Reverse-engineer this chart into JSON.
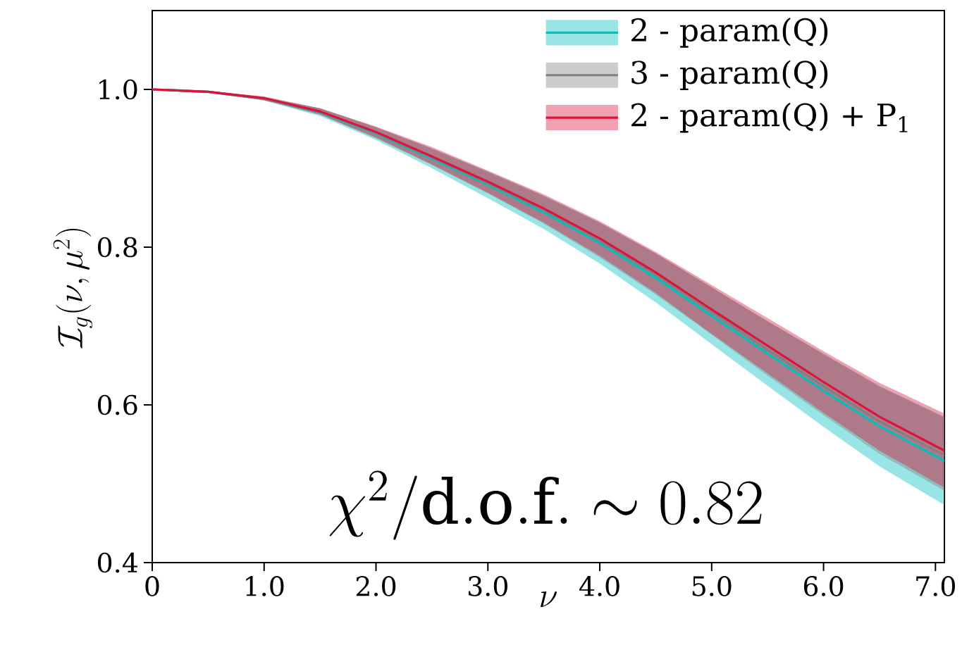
{
  "chart_data": {
    "type": "line",
    "xlabel": "\\nu",
    "ylabel": "\\mathcal{I}_g(\\nu, \\mu^2)",
    "x": [
      0,
      0.5,
      1,
      1.5,
      2,
      2.5,
      3,
      3.5,
      4,
      4.5,
      5,
      5.5,
      6,
      6.5,
      7.08
    ],
    "series": [
      {
        "name": "2 - param(Q)",
        "color": "#00bfbf",
        "values": [
          1.0,
          0.997,
          0.988,
          0.971,
          0.944,
          0.912,
          0.879,
          0.844,
          0.805,
          0.761,
          0.713,
          0.665,
          0.618,
          0.573,
          0.529
        ],
        "lower": [
          1.0,
          0.996,
          0.986,
          0.966,
          0.936,
          0.9,
          0.862,
          0.823,
          0.779,
          0.73,
          0.677,
          0.624,
          0.572,
          0.522,
          0.473
        ],
        "upper": [
          1.0,
          0.998,
          0.99,
          0.976,
          0.952,
          0.925,
          0.896,
          0.865,
          0.831,
          0.792,
          0.749,
          0.706,
          0.665,
          0.624,
          0.585
        ]
      },
      {
        "name": "3 - param(Q)",
        "color": "#808080",
        "values": [
          1.0,
          0.997,
          0.988,
          0.972,
          0.945,
          0.914,
          0.881,
          0.847,
          0.808,
          0.765,
          0.718,
          0.67,
          0.624,
          0.579,
          0.536
        ],
        "lower": [
          1.0,
          0.997,
          0.986,
          0.968,
          0.938,
          0.904,
          0.868,
          0.83,
          0.787,
          0.74,
          0.689,
          0.637,
          0.587,
          0.538,
          0.491
        ],
        "upper": [
          1.0,
          0.998,
          0.99,
          0.976,
          0.952,
          0.925,
          0.895,
          0.865,
          0.831,
          0.792,
          0.749,
          0.706,
          0.664,
          0.623,
          0.584
        ]
      },
      {
        "name": "2 - param(Q) + P$_{1}$",
        "color": "#dc143c",
        "values": [
          1.0,
          0.997,
          0.989,
          0.972,
          0.946,
          0.915,
          0.883,
          0.849,
          0.811,
          0.768,
          0.721,
          0.675,
          0.629,
          0.585,
          0.542
        ],
        "lower": [
          1.0,
          0.997,
          0.987,
          0.968,
          0.939,
          0.905,
          0.869,
          0.831,
          0.789,
          0.742,
          0.69,
          0.64,
          0.59,
          0.542,
          0.495
        ],
        "upper": [
          1.0,
          0.998,
          0.991,
          0.976,
          0.953,
          0.927,
          0.897,
          0.867,
          0.833,
          0.794,
          0.752,
          0.71,
          0.668,
          0.628,
          0.589
        ]
      }
    ],
    "xlim": [
      0,
      7.08
    ],
    "ylim": [
      0.4,
      1.1
    ],
    "xticks": [
      0,
      {
        "value": 1,
        "label": "1.0"
      },
      {
        "value": 2,
        "label": "2.0"
      },
      {
        "value": 3,
        "label": "3.0"
      },
      {
        "value": 4,
        "label": "4.0"
      },
      {
        "value": 5,
        "label": "5.0"
      },
      {
        "value": 6,
        "label": "6.0"
      },
      {
        "value": 7,
        "label": "7.0"
      }
    ],
    "yticks": [
      0.4,
      0.6,
      0.8,
      {
        "value": 1,
        "label": "1.0"
      }
    ],
    "annotations": [
      "\\chi^2/\\mathrm{d.o.f.} \\sim 0.82"
    ],
    "legend": "top right"
  }
}
